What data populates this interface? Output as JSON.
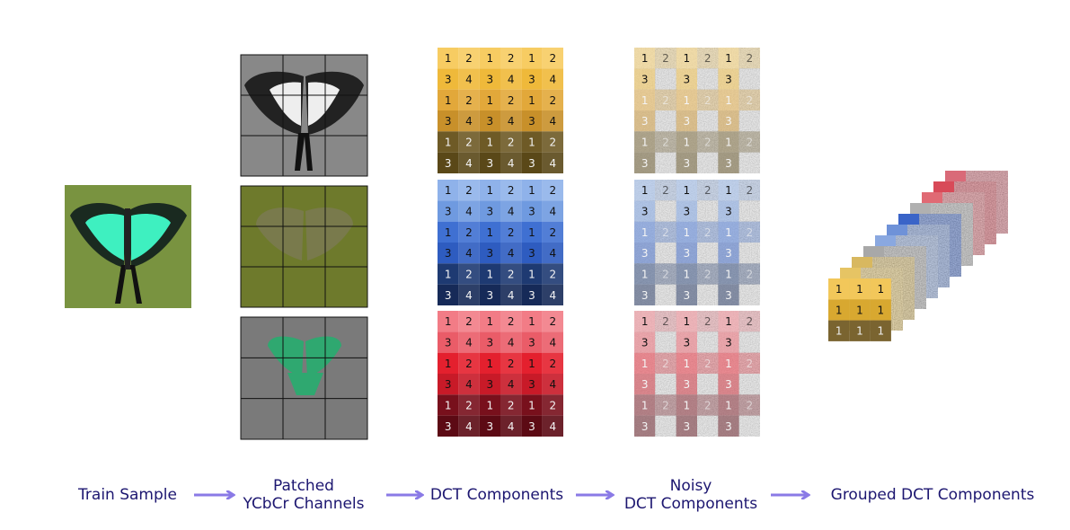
{
  "stages": [
    {
      "label_lines": [
        "Train Sample"
      ]
    },
    {
      "label_lines": [
        "Patched",
        "YCbCr Channels"
      ]
    },
    {
      "label_lines": [
        "DCT Components"
      ]
    },
    {
      "label_lines": [
        "Noisy",
        "DCT Components"
      ]
    },
    {
      "label_lines": [
        "Grouped DCT Components"
      ]
    }
  ],
  "dct_grids": [
    {
      "rows": [
        [
          1,
          2,
          1,
          2,
          1,
          2
        ],
        [
          3,
          4,
          3,
          4,
          3,
          4
        ],
        [
          1,
          2,
          1,
          2,
          1,
          2
        ],
        [
          3,
          4,
          3,
          4,
          3,
          4
        ],
        [
          1,
          2,
          1,
          2,
          1,
          2
        ],
        [
          3,
          4,
          3,
          4,
          3,
          4
        ]
      ]
    },
    {
      "rows": [
        [
          1,
          2,
          1,
          2,
          1,
          2
        ],
        [
          3,
          4,
          3,
          4,
          3,
          4
        ],
        [
          1,
          2,
          1,
          2,
          1,
          2
        ],
        [
          3,
          4,
          3,
          4,
          3,
          4
        ],
        [
          1,
          2,
          1,
          2,
          1,
          2
        ],
        [
          3,
          4,
          3,
          4,
          3,
          4
        ]
      ]
    },
    {
      "rows": [
        [
          1,
          2,
          1,
          2,
          1,
          2
        ],
        [
          3,
          4,
          3,
          4,
          3,
          4
        ],
        [
          1,
          2,
          1,
          2,
          1,
          2
        ],
        [
          3,
          4,
          3,
          4,
          3,
          4
        ],
        [
          1,
          2,
          1,
          2,
          1,
          2
        ],
        [
          3,
          4,
          3,
          4,
          3,
          4
        ]
      ]
    }
  ],
  "noisy_grids": [
    {
      "rows": [
        [
          1,
          2,
          1,
          2,
          1,
          2
        ],
        [
          3,
          null,
          3,
          null,
          3,
          null
        ],
        [
          1,
          2,
          1,
          2,
          1,
          2
        ],
        [
          3,
          null,
          3,
          null,
          3,
          null
        ],
        [
          1,
          2,
          1,
          2,
          1,
          2
        ],
        [
          3,
          null,
          3,
          null,
          3,
          null
        ]
      ]
    },
    {
      "rows": [
        [
          1,
          2,
          1,
          2,
          1,
          2
        ],
        [
          3,
          null,
          3,
          null,
          3,
          null
        ],
        [
          1,
          2,
          1,
          2,
          1,
          2
        ],
        [
          3,
          null,
          3,
          null,
          3,
          null
        ],
        [
          1,
          2,
          1,
          2,
          1,
          2
        ],
        [
          3,
          null,
          3,
          null,
          3,
          null
        ]
      ]
    },
    {
      "rows": [
        [
          1,
          2,
          1,
          2,
          1,
          2
        ],
        [
          3,
          null,
          3,
          null,
          3,
          null
        ],
        [
          1,
          2,
          1,
          2,
          1,
          2
        ],
        [
          3,
          null,
          3,
          null,
          3,
          null
        ],
        [
          1,
          2,
          1,
          2,
          1,
          2
        ],
        [
          3,
          null,
          3,
          null,
          3,
          null
        ]
      ]
    }
  ],
  "grouped_front": {
    "rows": [
      [
        1,
        1,
        1
      ],
      [
        1,
        1,
        1
      ],
      [
        1,
        1,
        1
      ]
    ]
  }
}
